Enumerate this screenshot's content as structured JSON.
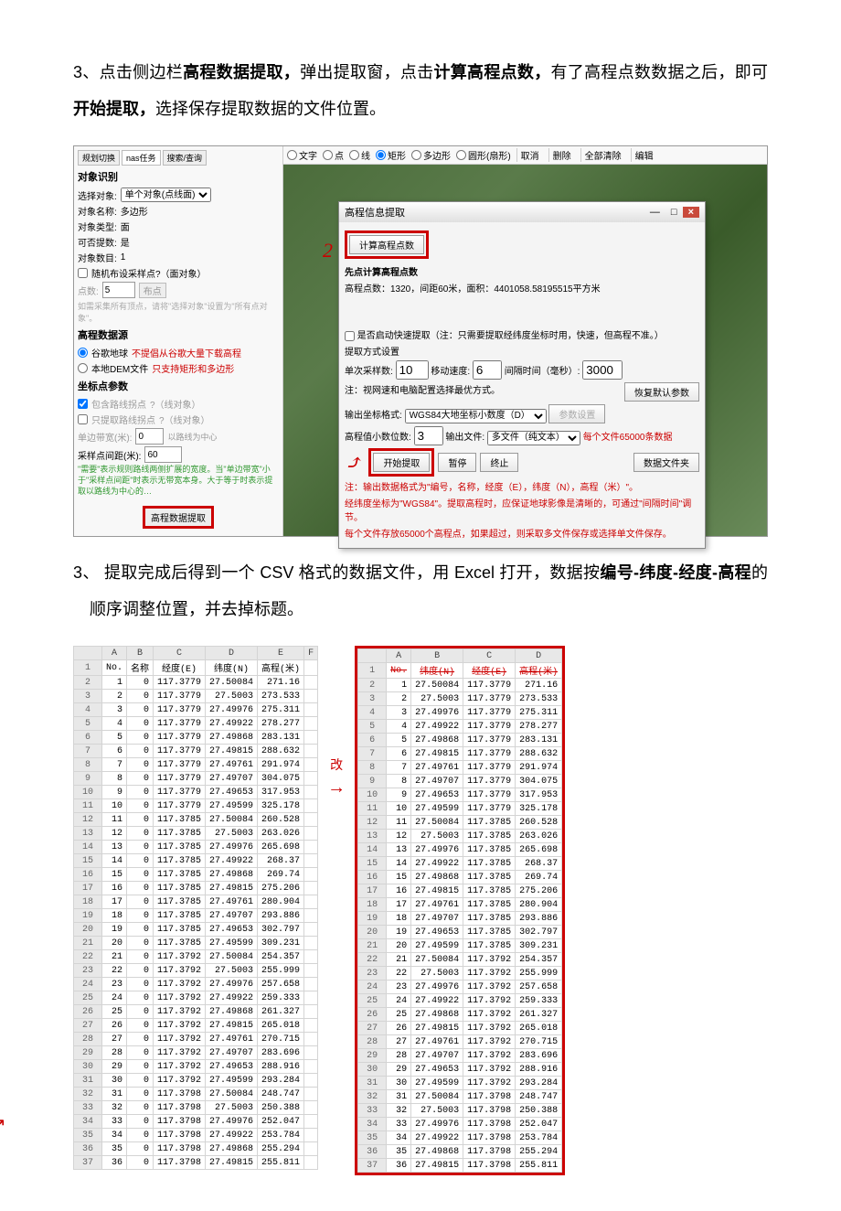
{
  "para1_parts": [
    "3、点击侧边栏",
    "高程数据提取，",
    "弹出提取窗，点击",
    "计算高程点数，",
    "有了高程点数数据之后，即可",
    "开始提取，",
    "选择保存提取数据的文件位置。"
  ],
  "toolbar": {
    "opts": [
      "文字",
      "点",
      "线",
      "矩形",
      "多边形",
      "圆形(扇形)"
    ],
    "selected": 3,
    "btns": [
      "取消",
      "删除",
      "全部清除",
      "编辑"
    ]
  },
  "side": {
    "tabs": [
      "规划切换",
      "nas任务",
      "搜索/查询"
    ],
    "section1": "对象识别",
    "rows": [
      [
        "选择对象:",
        "单个对象(点线面)"
      ],
      [
        "对象名称:",
        "多边形"
      ],
      [
        "对象类型:",
        "面"
      ],
      [
        "可否提数:",
        "是"
      ],
      [
        "对象数目:",
        "1"
      ]
    ],
    "chk_random": "随机布设采样点?（面对象）",
    "pts_label": "点数:",
    "pts_val": "5",
    "pts_btn": "布点",
    "note_gray": "如需采集所有顶点，请将\"选择对象\"设置为\"所有点对象\"。",
    "section2": "高程数据源",
    "src1": "谷歌地球",
    "src1_red": "不提倡从谷歌大量下载高程",
    "src2": "本地DEM文件",
    "src2_red": "只支持矩形和多边形",
    "section3": "坐标点参数",
    "inc_line": "包含路线拐点",
    "q1": "?（线对象）",
    "only_line": "只提取路线拐点",
    "q2": "?（线对象）",
    "width_lbl": "单边带宽(米):",
    "width_val": "0",
    "width_note": "以路线为中心",
    "gap_lbl": "采样点间距(米):",
    "gap_val": "60",
    "green": "\"需要\"表示规则路线两侧扩展的宽度。当\"单边带宽\"小于\"采样点间距\"时表示无带宽本身。大于等于时表示提取以路线为中心的…",
    "extract_btn": "高程数据提取"
  },
  "dialog": {
    "title": "高程信息提取",
    "calc_btn": "计算高程点数",
    "calc_title": "先点计算高程点数",
    "calc_line": "高程点数：1320，间距60米，面积：4401058.58195515平方米",
    "fast_chk": "是否启动快速提取（注：只需要提取经纬度坐标时用，快速，但高程不准。）",
    "method": "提取方式设置",
    "per_lbl": "单次采样数:",
    "per_val": "10",
    "move_lbl": "移动速度:",
    "move_val": "6",
    "wait_lbl": "间隔时间（毫秒）:",
    "wait_val": "3000",
    "net_note": "注：视网速和电脑配置选择最优方式。",
    "reset_btn": "恢复默认参数",
    "coord_lbl": "输出坐标格式:",
    "coord_val": "WGS84大地坐标小数度（D）",
    "coord_btn": "参数设置",
    "dec_lbl": "高程值小数位数:",
    "dec_val": "3",
    "out_lbl": "输出文件:",
    "out_val": "多文件（纯文本）",
    "out_red": "每个文件65000条数据",
    "start": "开始提取",
    "pause": "暂停",
    "stop": "终止",
    "folder": "数据文件夹",
    "hint1": "注：输出数据格式为\"编号，名称，经度（E），纬度（N），高程（米）\"。",
    "hint2": "经纬度坐标为\"WGS84\"。提取高程时，应保证地球影像是清晰的，可通过\"间隔时间\"调节。",
    "hint3": "每个文件存放65000个高程点，如果超过，则采取多文件保存或选择单文件保存。"
  },
  "para2_parts": [
    "3、 提取完成后得到一个 CSV 格式的数据文件，用 Excel 打开，数据按",
    "编号-纬度-经度-高程",
    "的顺序调整位置，并去掉标题。"
  ],
  "mid_label": "改",
  "table_left": {
    "cols": [
      "",
      "A",
      "B",
      "C",
      "D",
      "E",
      "F"
    ],
    "header": [
      "No.",
      "名称",
      "经度(E)",
      "纬度(N)",
      "高程(米)",
      ""
    ],
    "rows": [
      [
        "1",
        "0",
        "117.3779",
        "27.50084",
        "271.16"
      ],
      [
        "2",
        "0",
        "117.3779",
        "27.5003",
        "273.533"
      ],
      [
        "3",
        "0",
        "117.3779",
        "27.49976",
        "275.311"
      ],
      [
        "4",
        "0",
        "117.3779",
        "27.49922",
        "278.277"
      ],
      [
        "5",
        "0",
        "117.3779",
        "27.49868",
        "283.131"
      ],
      [
        "6",
        "0",
        "117.3779",
        "27.49815",
        "288.632"
      ],
      [
        "7",
        "0",
        "117.3779",
        "27.49761",
        "291.974"
      ],
      [
        "8",
        "0",
        "117.3779",
        "27.49707",
        "304.075"
      ],
      [
        "9",
        "0",
        "117.3779",
        "27.49653",
        "317.953"
      ],
      [
        "10",
        "0",
        "117.3779",
        "27.49599",
        "325.178"
      ],
      [
        "11",
        "0",
        "117.3785",
        "27.50084",
        "260.528"
      ],
      [
        "12",
        "0",
        "117.3785",
        "27.5003",
        "263.026"
      ],
      [
        "13",
        "0",
        "117.3785",
        "27.49976",
        "265.698"
      ],
      [
        "14",
        "0",
        "117.3785",
        "27.49922",
        "268.37"
      ],
      [
        "15",
        "0",
        "117.3785",
        "27.49868",
        "269.74"
      ],
      [
        "16",
        "0",
        "117.3785",
        "27.49815",
        "275.206"
      ],
      [
        "17",
        "0",
        "117.3785",
        "27.49761",
        "280.904"
      ],
      [
        "18",
        "0",
        "117.3785",
        "27.49707",
        "293.886"
      ],
      [
        "19",
        "0",
        "117.3785",
        "27.49653",
        "302.797"
      ],
      [
        "20",
        "0",
        "117.3785",
        "27.49599",
        "309.231"
      ],
      [
        "21",
        "0",
        "117.3792",
        "27.50084",
        "254.357"
      ],
      [
        "22",
        "0",
        "117.3792",
        "27.5003",
        "255.999"
      ],
      [
        "23",
        "0",
        "117.3792",
        "27.49976",
        "257.658"
      ],
      [
        "24",
        "0",
        "117.3792",
        "27.49922",
        "259.333"
      ],
      [
        "25",
        "0",
        "117.3792",
        "27.49868",
        "261.327"
      ],
      [
        "26",
        "0",
        "117.3792",
        "27.49815",
        "265.018"
      ],
      [
        "27",
        "0",
        "117.3792",
        "27.49761",
        "270.715"
      ],
      [
        "28",
        "0",
        "117.3792",
        "27.49707",
        "283.696"
      ],
      [
        "29",
        "0",
        "117.3792",
        "27.49653",
        "288.916"
      ],
      [
        "30",
        "0",
        "117.3792",
        "27.49599",
        "293.284"
      ],
      [
        "31",
        "0",
        "117.3798",
        "27.50084",
        "248.747"
      ],
      [
        "32",
        "0",
        "117.3798",
        "27.5003",
        "250.388"
      ],
      [
        "33",
        "0",
        "117.3798",
        "27.49976",
        "252.047"
      ],
      [
        "34",
        "0",
        "117.3798",
        "27.49922",
        "253.784"
      ],
      [
        "35",
        "0",
        "117.3798",
        "27.49868",
        "255.294"
      ],
      [
        "36",
        "0",
        "117.3798",
        "27.49815",
        "255.811"
      ]
    ]
  },
  "table_right": {
    "cols": [
      "",
      "A",
      "B",
      "C",
      "D"
    ],
    "header": [
      "No.",
      "纬度(N)",
      "经度(E)",
      "高程(米)"
    ],
    "rows": [
      [
        "1",
        "27.50084",
        "117.3779",
        "271.16"
      ],
      [
        "2",
        "27.5003",
        "117.3779",
        "273.533"
      ],
      [
        "3",
        "27.49976",
        "117.3779",
        "275.311"
      ],
      [
        "4",
        "27.49922",
        "117.3779",
        "278.277"
      ],
      [
        "5",
        "27.49868",
        "117.3779",
        "283.131"
      ],
      [
        "6",
        "27.49815",
        "117.3779",
        "288.632"
      ],
      [
        "7",
        "27.49761",
        "117.3779",
        "291.974"
      ],
      [
        "8",
        "27.49707",
        "117.3779",
        "304.075"
      ],
      [
        "9",
        "27.49653",
        "117.3779",
        "317.953"
      ],
      [
        "10",
        "27.49599",
        "117.3779",
        "325.178"
      ],
      [
        "11",
        "27.50084",
        "117.3785",
        "260.528"
      ],
      [
        "12",
        "27.5003",
        "117.3785",
        "263.026"
      ],
      [
        "13",
        "27.49976",
        "117.3785",
        "265.698"
      ],
      [
        "14",
        "27.49922",
        "117.3785",
        "268.37"
      ],
      [
        "15",
        "27.49868",
        "117.3785",
        "269.74"
      ],
      [
        "16",
        "27.49815",
        "117.3785",
        "275.206"
      ],
      [
        "17",
        "27.49761",
        "117.3785",
        "280.904"
      ],
      [
        "18",
        "27.49707",
        "117.3785",
        "293.886"
      ],
      [
        "19",
        "27.49653",
        "117.3785",
        "302.797"
      ],
      [
        "20",
        "27.49599",
        "117.3785",
        "309.231"
      ],
      [
        "21",
        "27.50084",
        "117.3792",
        "254.357"
      ],
      [
        "22",
        "27.5003",
        "117.3792",
        "255.999"
      ],
      [
        "23",
        "27.49976",
        "117.3792",
        "257.658"
      ],
      [
        "24",
        "27.49922",
        "117.3792",
        "259.333"
      ],
      [
        "25",
        "27.49868",
        "117.3792",
        "261.327"
      ],
      [
        "26",
        "27.49815",
        "117.3792",
        "265.018"
      ],
      [
        "27",
        "27.49761",
        "117.3792",
        "270.715"
      ],
      [
        "28",
        "27.49707",
        "117.3792",
        "283.696"
      ],
      [
        "29",
        "27.49653",
        "117.3792",
        "288.916"
      ],
      [
        "30",
        "27.49599",
        "117.3792",
        "293.284"
      ],
      [
        "31",
        "27.50084",
        "117.3798",
        "248.747"
      ],
      [
        "32",
        "27.5003",
        "117.3798",
        "250.388"
      ],
      [
        "33",
        "27.49976",
        "117.3798",
        "252.047"
      ],
      [
        "34",
        "27.49922",
        "117.3798",
        "253.784"
      ],
      [
        "35",
        "27.49868",
        "117.3798",
        "255.294"
      ],
      [
        "36",
        "27.49815",
        "117.3798",
        "255.811"
      ]
    ]
  }
}
